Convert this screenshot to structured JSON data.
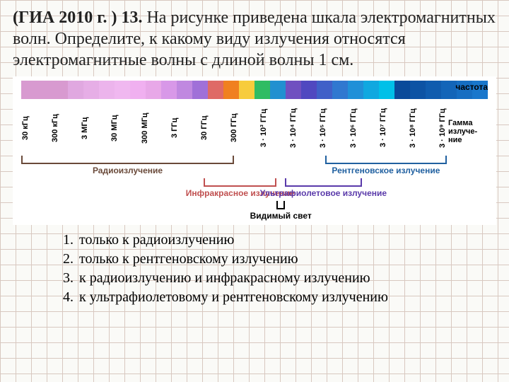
{
  "question": {
    "prefix": "(ГИА 2010 г. ) 13. ",
    "body": "На рисунке приведена шкала электромагнитных волн. Определите, к какому виду излучения относятся электромагнитные волны с длиной волны 1 см."
  },
  "diagram": {
    "spectrum_colors": [
      "#d89ad0",
      "#d89ad0",
      "#d89ad0",
      "#e0a8e0",
      "#e6aee6",
      "#ecb4ec",
      "#f0b8f0",
      "#f0b0f0",
      "#e8a8e8",
      "#d898e8",
      "#c088e0",
      "#a070d8",
      "#df6a66",
      "#f08020",
      "#f7cc3c",
      "#2fbc63",
      "#2190d0",
      "#7050c0",
      "#5048c0",
      "#4060c8",
      "#3078d0",
      "#2090d8",
      "#10a8e0",
      "#00c0e8",
      "#0a4a9a",
      "#0d53a4",
      "#105cae",
      "#1365b8",
      "#166ec2",
      "#1977cc"
    ],
    "ticks": [
      "30 кГц",
      "300 кГц",
      "3 МГц",
      "30 МГц",
      "300 МГц",
      "3 ГГц",
      "30 ГГц",
      "300 ГГц",
      "3 · 10³ ГГц",
      "3 · 10⁴ ГГц",
      "3 · 10⁵ ГГц",
      "3 · 10⁶ ГГц",
      "3 · 10⁷ ГГц",
      "3 · 10⁸ ГГц",
      "3 · 10⁹ ГГц"
    ],
    "freq_label": "частота",
    "gamma_label": "Гамма излуче-ние",
    "bands": [
      {
        "name": "Радиоизлучение",
        "color": "#6a4a3a",
        "left_pct": 0,
        "right_pct": 50,
        "row": 0
      },
      {
        "name": "Инфракрасное излучение",
        "color": "#c05050",
        "left_pct": 42.9,
        "right_pct": 60,
        "row": 1
      },
      {
        "name": "Видимый свет",
        "color": "#000000",
        "left_pct": 60,
        "right_pct": 62,
        "row": 2
      },
      {
        "name": "Ультрафиолетовое излучение",
        "color": "#5a3aaa",
        "left_pct": 62,
        "right_pct": 80,
        "row": 1
      },
      {
        "name": "Рентгеновское излучение",
        "color": "#2060a0",
        "left_pct": 71.4,
        "right_pct": 100,
        "row": 0
      }
    ],
    "row_tops": [
      2,
      34,
      66
    ],
    "label_offset": 14
  },
  "answers": [
    "только к радиоизлучению",
    "только к рентгеновскому излучению",
    "к радиоизлучению и инфракрасному излучению",
    "к ультрафиолетовому и рентгеновскому излучению"
  ]
}
